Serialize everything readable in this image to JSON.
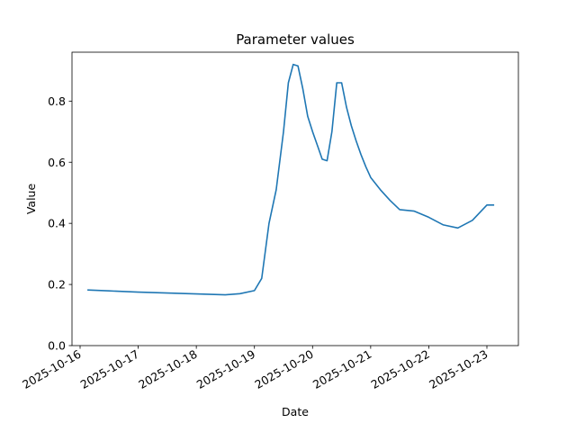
{
  "chart_data": {
    "type": "line",
    "title": "Parameter values",
    "xlabel": "Date",
    "ylabel": "Value",
    "x_tick_labels": [
      "2025-10-16",
      "2025-10-17",
      "2025-10-18",
      "2025-10-19",
      "2025-10-20",
      "2025-10-21",
      "2025-10-22",
      "2025-10-23"
    ],
    "y_tick_labels": [
      "0.0",
      "0.2",
      "0.4",
      "0.6",
      "0.8"
    ],
    "y_ticks": [
      0.0,
      0.2,
      0.4,
      0.6,
      0.8
    ],
    "xlim": [
      "2025-10-16T00:00",
      "2025-10-23T12:00"
    ],
    "ylim": [
      0,
      0.96
    ],
    "grid": false,
    "color": "#1f77b4",
    "series": [
      {
        "x": [
          "2025-10-16T03:00",
          "2025-10-16T12:00",
          "2025-10-17T00:00",
          "2025-10-17T12:00",
          "2025-10-18T00:00",
          "2025-10-18T12:00",
          "2025-10-18T18:00",
          "2025-10-19T00:00",
          "2025-10-19T03:00",
          "2025-10-19T06:00",
          "2025-10-19T09:00",
          "2025-10-19T12:00",
          "2025-10-19T14:00",
          "2025-10-19T16:00",
          "2025-10-19T18:00",
          "2025-10-19T20:00",
          "2025-10-19T22:00",
          "2025-10-20T00:00",
          "2025-10-20T02:00",
          "2025-10-20T04:00",
          "2025-10-20T06:00",
          "2025-10-20T08:00",
          "2025-10-20T10:00",
          "2025-10-20T12:00",
          "2025-10-20T14:00",
          "2025-10-20T16:00",
          "2025-10-20T18:00",
          "2025-10-20T20:00",
          "2025-10-20T22:00",
          "2025-10-21T00:00",
          "2025-10-21T04:00",
          "2025-10-21T08:00",
          "2025-10-21T12:00",
          "2025-10-21T18:00",
          "2025-10-22T00:00",
          "2025-10-22T06:00",
          "2025-10-22T12:00",
          "2025-10-22T18:00",
          "2025-10-23T00:00",
          "2025-10-23T03:00"
        ],
        "y": [
          0.182,
          0.179,
          0.175,
          0.172,
          0.169,
          0.166,
          0.17,
          0.18,
          0.22,
          0.4,
          0.51,
          0.7,
          0.86,
          0.92,
          0.915,
          0.84,
          0.75,
          0.7,
          0.655,
          0.61,
          0.605,
          0.7,
          0.86,
          0.86,
          0.78,
          0.72,
          0.67,
          0.625,
          0.585,
          0.55,
          0.51,
          0.475,
          0.445,
          0.44,
          0.42,
          0.395,
          0.385,
          0.41,
          0.46,
          0.46
        ]
      }
    ]
  }
}
